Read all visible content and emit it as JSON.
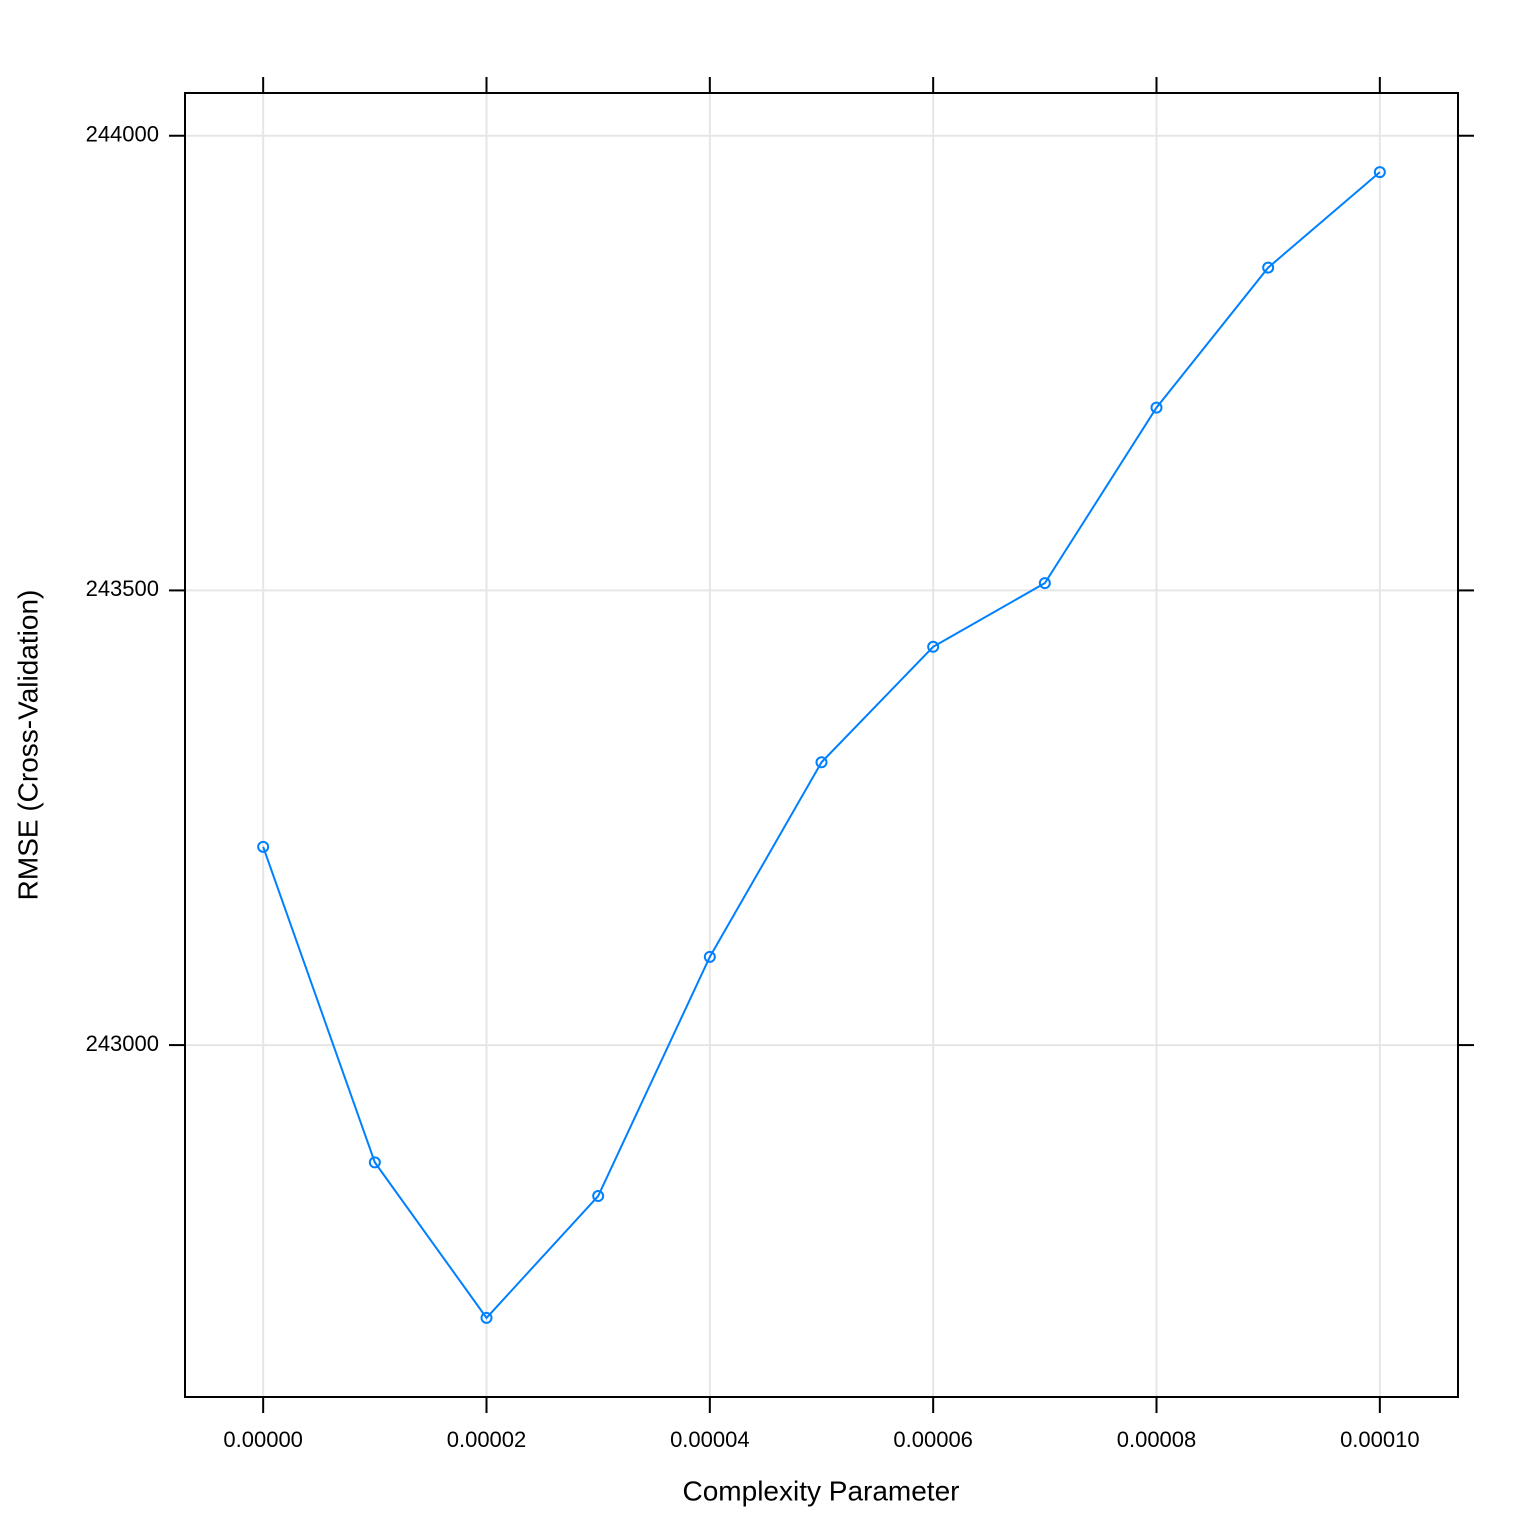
{
  "chart_data": {
    "type": "line",
    "x_label": "Complexity Parameter",
    "y_label": "RMSE (Cross-Validation)",
    "x": [
      0,
      1e-05,
      2e-05,
      3e-05,
      4e-05,
      5e-05,
      6e-05,
      7e-05,
      8e-05,
      9e-05,
      0.0001
    ],
    "series": [
      {
        "color": "#0080ff",
        "values": [
          243218,
          242871,
          242700,
          242834,
          243097,
          243311,
          243438,
          243508,
          243701,
          243855,
          243960
        ]
      }
    ],
    "xlim": [
      -7e-06,
      0.000107
    ],
    "ylim": [
      242613,
      244047
    ],
    "xticks": [
      {
        "value": 0,
        "label": "0.00000"
      },
      {
        "value": 2e-05,
        "label": "0.00002"
      },
      {
        "value": 4e-05,
        "label": "0.00004"
      },
      {
        "value": 6e-05,
        "label": "0.00006"
      },
      {
        "value": 8e-05,
        "label": "0.00008"
      },
      {
        "value": 0.0001,
        "label": "0.00010"
      }
    ],
    "yticks": [
      243000,
      243500,
      244000
    ],
    "grid": true
  }
}
